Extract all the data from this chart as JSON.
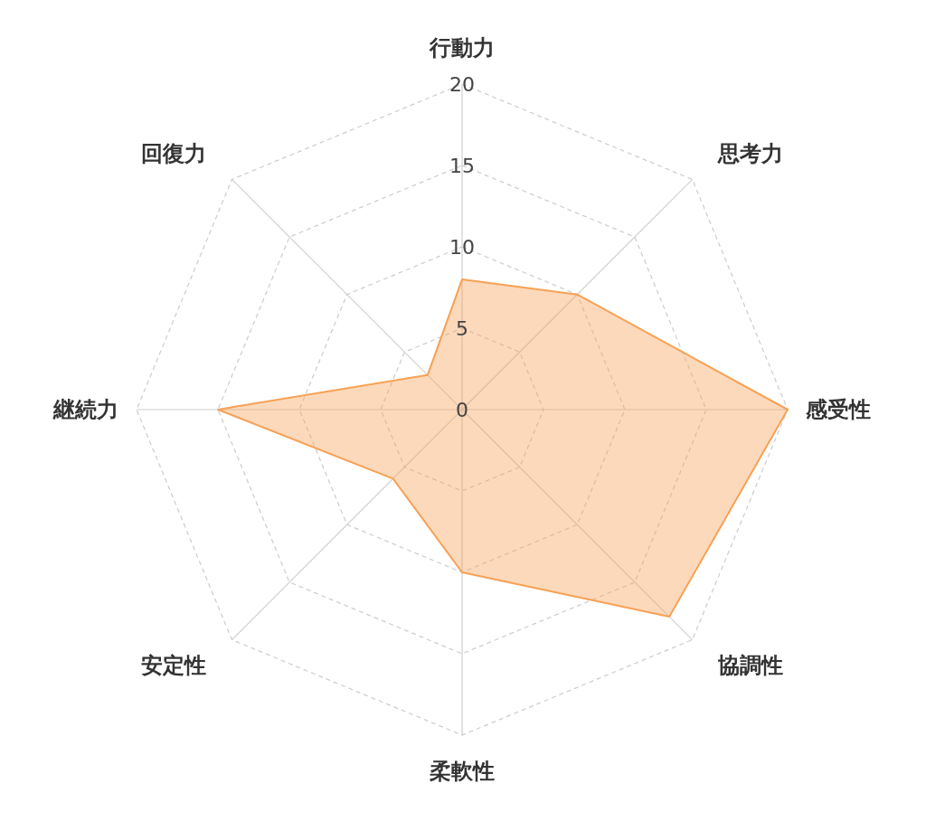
{
  "chart_data": {
    "type": "radar",
    "categories": [
      "行動力",
      "思考力",
      "感受性",
      "協調性",
      "柔軟性",
      "安定性",
      "継続力",
      "回復力"
    ],
    "series": [
      {
        "color": "#f7a155",
        "values": [
          8,
          10,
          20,
          18,
          10,
          6,
          15,
          3
        ]
      }
    ],
    "ylim": [
      0,
      20
    ],
    "yticks": [
      0,
      5,
      10,
      15,
      20
    ],
    "grid": true,
    "marker": "none"
  }
}
